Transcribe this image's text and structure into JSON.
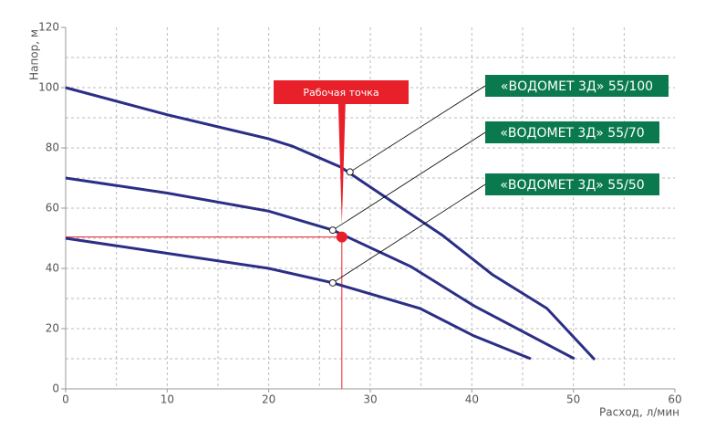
{
  "chart_data": {
    "type": "line",
    "y_label": "Напор, м",
    "x_label": "Расход, л/мин",
    "xlim": [
      0,
      60
    ],
    "ylim": [
      0,
      120
    ],
    "xticks": [
      0,
      10,
      20,
      30,
      40,
      50,
      60
    ],
    "yticks": [
      0,
      20,
      40,
      60,
      80,
      100,
      120
    ],
    "x_grid": [
      5,
      10,
      15,
      20,
      25,
      30,
      35,
      40,
      45,
      50,
      55
    ],
    "y_grid": [
      10,
      20,
      30,
      40,
      50,
      60,
      70,
      80,
      90,
      100,
      110
    ],
    "series": [
      {
        "name": "«ВОДОМЕТ 3Д» 55/100",
        "color": "#2b2e85",
        "label_color": "#0a7a4e",
        "x": [
          0,
          10,
          20,
          22.3,
          27.1,
          30,
          37.1,
          42,
          47.4,
          52.1
        ],
        "values": [
          100,
          91,
          83,
          80.6,
          73.6,
          67,
          51,
          38,
          26.7,
          9.7
        ],
        "callout_point": [
          28,
          72
        ]
      },
      {
        "name": "«ВОДОМЕТ 3Д» 55/70",
        "color": "#2b2e85",
        "label_color": "#0a7a4e",
        "x": [
          0,
          10,
          20,
          26.3,
          34,
          40.2,
          50.1
        ],
        "values": [
          70,
          65,
          59,
          52.7,
          40.6,
          27.6,
          10
        ],
        "callout_point": [
          26.3,
          52.7
        ]
      },
      {
        "name": "«ВОДОМЕТ 3Д» 55/50",
        "color": "#2b2e85",
        "label_color": "#0a7a4e",
        "x": [
          0,
          10,
          20,
          26.3,
          34.9,
          40.2,
          45.8
        ],
        "values": [
          50,
          45,
          40,
          35.2,
          26.7,
          17.6,
          10
        ],
        "callout_point": [
          26.3,
          35.2
        ]
      }
    ],
    "working_point": {
      "label": "Рабочая точка",
      "x": 27.2,
      "y": 50.4,
      "color": "#e8202a"
    }
  }
}
